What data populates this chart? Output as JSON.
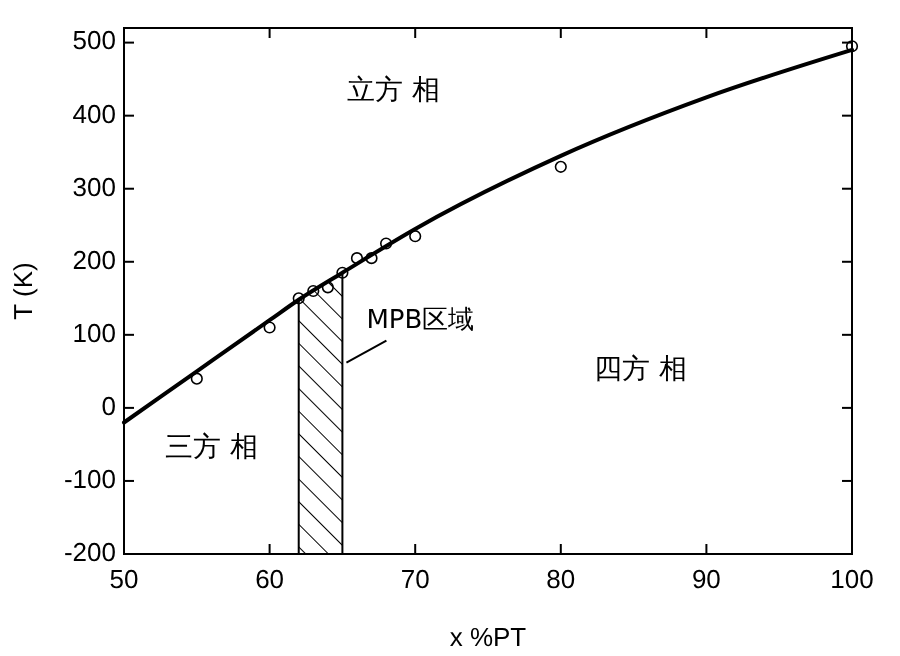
{
  "chart_data": {
    "type": "scatter",
    "xlabel": "x %PT",
    "ylabel": "T (K)",
    "xlim": [
      50,
      100
    ],
    "xticks": [
      50,
      60,
      70,
      80,
      90,
      100
    ],
    "ylim": [
      -200,
      520
    ],
    "yticks": [
      -200,
      -100,
      0,
      100,
      200,
      300,
      400,
      500
    ],
    "series": [
      {
        "color": "#000000",
        "marker": "circle",
        "x": [
          55,
          60,
          62,
          63,
          64,
          65,
          66,
          67,
          68,
          70,
          80,
          100
        ],
        "values": [
          40,
          110,
          150,
          160,
          165,
          185,
          205,
          205,
          225,
          235,
          330,
          495
        ]
      },
      {
        "type": "line",
        "color": "#000000",
        "x": [
          50,
          55,
          60,
          62,
          65,
          70,
          80,
          90,
          100
        ],
        "values": [
          -20,
          50,
          120,
          148,
          185,
          245,
          345,
          425,
          490
        ]
      }
    ],
    "bands": [
      {
        "axis": "x",
        "from": 62,
        "to": 65,
        "label": "MPB区域"
      }
    ],
    "annotations": [
      "立方 相",
      "四方 相",
      "三方 相"
    ]
  }
}
